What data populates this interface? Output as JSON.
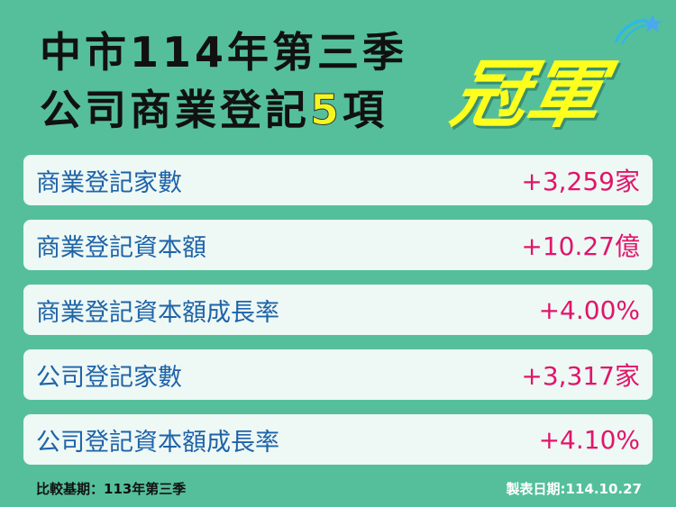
{
  "title": {
    "line1": "中市114年第三季",
    "line2_pre": "公司商業登記",
    "line2_num": "5",
    "line2_post": "項",
    "champion": "冠軍"
  },
  "colors": {
    "background": "#55bf9c",
    "label": "#1e63a8",
    "value": "#e0156a",
    "highlight": "#ffff1e"
  },
  "rows": [
    {
      "label": "商業登記家數",
      "value": "+3,259家"
    },
    {
      "label": "商業登記資本額",
      "value": "+10.27億"
    },
    {
      "label": "商業登記資本額成長率",
      "value": "+4.00%"
    },
    {
      "label": "公司登記家數",
      "value": "+3,317家"
    },
    {
      "label": "公司登記資本額成長率",
      "value": "+4.10%"
    }
  ],
  "footer": {
    "left": "比較基期：113年第三季",
    "right": "製表日期:114.10.27"
  }
}
